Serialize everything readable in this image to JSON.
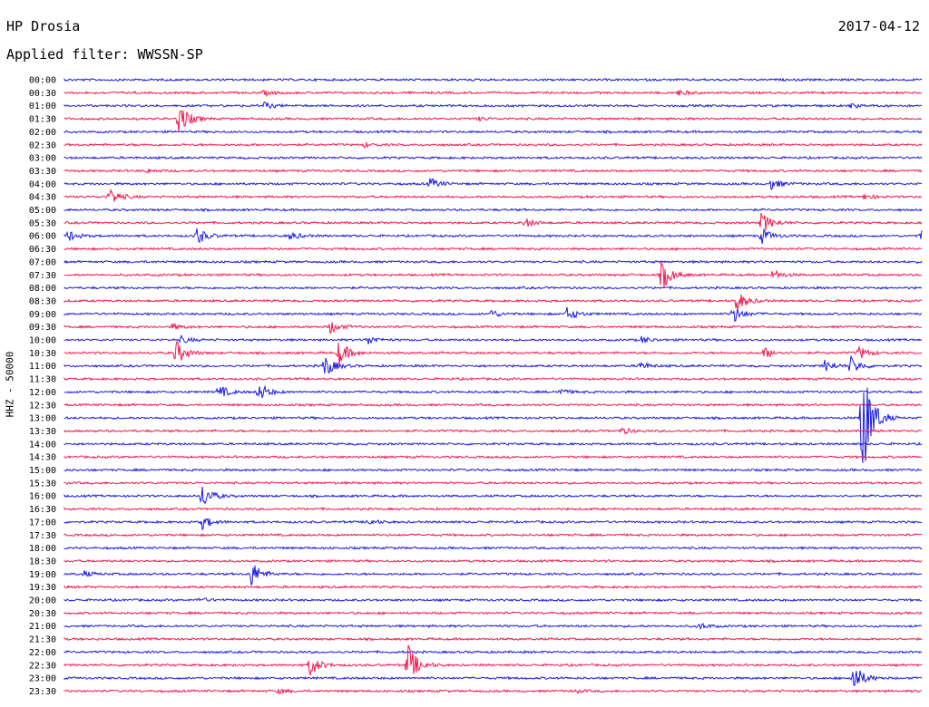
{
  "header": {
    "station": "HP Drosia",
    "filter": "Applied filter: WWSSN-SP",
    "date": "2017-04-12"
  },
  "colors": {
    "line_a": "#1a1ae6",
    "line_b": "#f2184f"
  },
  "chart_data": {
    "type": "line",
    "title": "HP Drosia",
    "subtitle": "Applied filter: WWSSN-SP",
    "date": "2017-04-12",
    "ylabel": "HHZ - 50000",
    "xlim_minutes": [
      0,
      30
    ],
    "y_tick_labels": [
      "00:00",
      "00:30",
      "01:00",
      "01:30",
      "02:00",
      "02:30",
      "03:00",
      "03:30",
      "04:00",
      "04:30",
      "05:00",
      "05:30",
      "06:00",
      "06:30",
      "07:00",
      "07:30",
      "08:00",
      "08:30",
      "09:00",
      "09:30",
      "10:00",
      "10:30",
      "11:00",
      "11:30",
      "12:00",
      "12:30",
      "13:00",
      "13:30",
      "14:00",
      "14:30",
      "15:00",
      "15:30",
      "16:00",
      "16:30",
      "17:00",
      "17:30",
      "18:00",
      "18:30",
      "19:00",
      "19:30",
      "20:00",
      "20:30",
      "21:00",
      "21:30",
      "22:00",
      "22:30",
      "23:00",
      "23:30"
    ],
    "line_colors_alternate": [
      "#1a1ae6",
      "#f2184f"
    ],
    "events": [
      {
        "row": "00:30",
        "minute": 7.0,
        "amplitude": 0.35
      },
      {
        "row": "00:30",
        "minute": 21.5,
        "amplitude": 0.45
      },
      {
        "row": "01:00",
        "minute": 7.0,
        "amplitude": 0.5
      },
      {
        "row": "01:00",
        "minute": 27.5,
        "amplitude": 0.35
      },
      {
        "row": "01:30",
        "minute": 4.0,
        "amplitude": 2.6
      },
      {
        "row": "01:30",
        "minute": 14.5,
        "amplitude": 0.25
      },
      {
        "row": "02:30",
        "minute": 10.5,
        "amplitude": 0.3
      },
      {
        "row": "03:30",
        "minute": 2.9,
        "amplitude": 0.3
      },
      {
        "row": "04:00",
        "minute": 12.8,
        "amplitude": 0.8
      },
      {
        "row": "04:00",
        "minute": 24.7,
        "amplitude": 0.9
      },
      {
        "row": "04:30",
        "minute": 1.6,
        "amplitude": 1.4
      },
      {
        "row": "04:30",
        "minute": 28.0,
        "amplitude": 0.45
      },
      {
        "row": "05:30",
        "minute": 16.1,
        "amplitude": 0.7
      },
      {
        "row": "05:30",
        "minute": 24.4,
        "amplitude": 1.7
      },
      {
        "row": "06:00",
        "minute": 0.1,
        "amplitude": 0.9
      },
      {
        "row": "06:00",
        "minute": 4.6,
        "amplitude": 1.6
      },
      {
        "row": "06:00",
        "minute": 7.9,
        "amplitude": 0.6
      },
      {
        "row": "06:00",
        "minute": 24.4,
        "amplitude": 1.2
      },
      {
        "row": "06:00",
        "minute": 30.0,
        "amplitude": 1.0
      },
      {
        "row": "07:30",
        "minute": 20.9,
        "amplitude": 2.5
      },
      {
        "row": "07:30",
        "minute": 24.8,
        "amplitude": 0.8
      },
      {
        "row": "08:30",
        "minute": 23.5,
        "amplitude": 1.8
      },
      {
        "row": "09:00",
        "minute": 14.9,
        "amplitude": 0.7
      },
      {
        "row": "09:00",
        "minute": 17.6,
        "amplitude": 1.1
      },
      {
        "row": "09:00",
        "minute": 23.4,
        "amplitude": 1.4
      },
      {
        "row": "09:30",
        "minute": 3.8,
        "amplitude": 0.4
      },
      {
        "row": "09:30",
        "minute": 9.3,
        "amplitude": 1.0
      },
      {
        "row": "10:00",
        "minute": 4.1,
        "amplitude": 0.5
      },
      {
        "row": "10:00",
        "minute": 10.6,
        "amplitude": 0.7
      },
      {
        "row": "10:00",
        "minute": 20.2,
        "amplitude": 0.5
      },
      {
        "row": "10:30",
        "minute": 3.9,
        "amplitude": 2.0
      },
      {
        "row": "10:30",
        "minute": 9.6,
        "amplitude": 2.1
      },
      {
        "row": "10:30",
        "minute": 24.5,
        "amplitude": 0.9
      },
      {
        "row": "10:30",
        "minute": 27.8,
        "amplitude": 1.0
      },
      {
        "row": "11:00",
        "minute": 9.1,
        "amplitude": 1.8
      },
      {
        "row": "11:00",
        "minute": 20.1,
        "amplitude": 0.7
      },
      {
        "row": "11:00",
        "minute": 26.6,
        "amplitude": 0.9
      },
      {
        "row": "11:00",
        "minute": 27.5,
        "amplitude": 1.5
      },
      {
        "row": "12:00",
        "minute": 5.4,
        "amplitude": 1.1
      },
      {
        "row": "12:00",
        "minute": 6.8,
        "amplitude": 1.5
      },
      {
        "row": "12:00",
        "minute": 17.3,
        "amplitude": 0.5
      },
      {
        "row": "13:00",
        "minute": 27.9,
        "amplitude": 11.0
      },
      {
        "row": "13:30",
        "minute": 19.5,
        "amplitude": 0.5
      },
      {
        "row": "16:00",
        "minute": 4.8,
        "amplitude": 2.0
      },
      {
        "row": "17:00",
        "minute": 4.8,
        "amplitude": 1.1
      },
      {
        "row": "17:00",
        "minute": 10.6,
        "amplitude": 0.5
      },
      {
        "row": "19:00",
        "minute": 6.5,
        "amplitude": 2.3
      },
      {
        "row": "19:00",
        "minute": 0.7,
        "amplitude": 0.4
      },
      {
        "row": "20:00",
        "minute": 4.7,
        "amplitude": 0.35
      },
      {
        "row": "21:00",
        "minute": 22.2,
        "amplitude": 0.5
      },
      {
        "row": "22:30",
        "minute": 8.6,
        "amplitude": 1.7
      },
      {
        "row": "22:30",
        "minute": 12.0,
        "amplitude": 3.5
      },
      {
        "row": "23:00",
        "minute": 27.6,
        "amplitude": 2.4
      },
      {
        "row": "23:30",
        "minute": 7.5,
        "amplitude": 0.35
      },
      {
        "row": "23:30",
        "minute": 17.8,
        "amplitude": 0.3
      }
    ]
  }
}
